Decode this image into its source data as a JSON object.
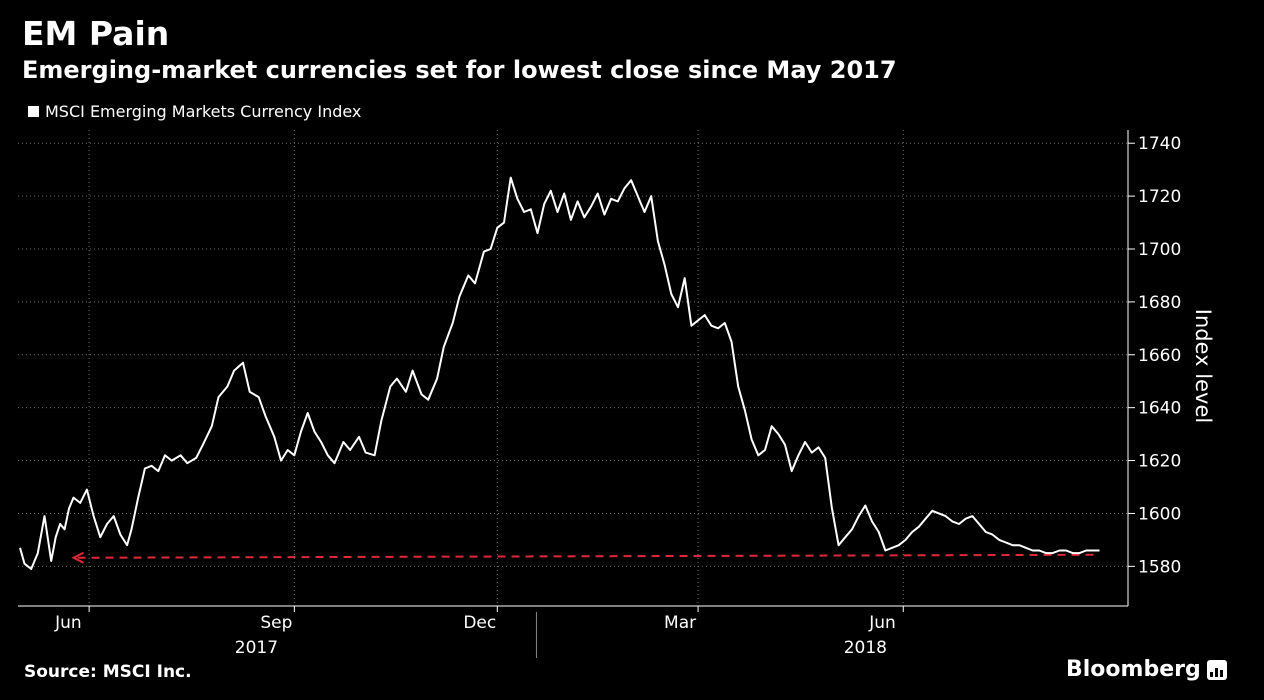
{
  "header": {
    "title": "EM Pain",
    "subtitle": "Emerging-market currencies set for lowest close since May 2017"
  },
  "footer": {
    "source": "Source: MSCI Inc.",
    "brand": "Bloomberg"
  },
  "colors": {
    "background": "#000000",
    "line": "#ffffff",
    "reference": "#e0283a",
    "grid": "#6e6e6e"
  },
  "chart_data": {
    "type": "line",
    "grid": true,
    "legend": {
      "position": "top-left",
      "entries": [
        "MSCI Emerging Markets Currency Index"
      ]
    },
    "ylabel": "Index level",
    "ylim": [
      1565,
      1745
    ],
    "yticks": [
      "1580",
      "1600",
      "1620",
      "1640",
      "1660",
      "1680",
      "1700",
      "1720",
      "1740"
    ],
    "x_domain": [
      "2017-05-01",
      "2018-08-30"
    ],
    "month_ticks": [
      {
        "date": "2017-06-01",
        "label": "Jun"
      },
      {
        "date": "2017-09-01",
        "label": "Sep"
      },
      {
        "date": "2017-12-01",
        "label": "Dec"
      },
      {
        "date": "2018-03-01",
        "label": "Mar"
      },
      {
        "date": "2018-06-01",
        "label": "Jun"
      }
    ],
    "year_labels": [
      {
        "date": "2017-08-15",
        "label": "2017"
      },
      {
        "date": "2018-05-15",
        "label": "2018"
      }
    ],
    "year_divider": "2018-01-01",
    "reference_line": {
      "value": 1584,
      "from": "2017-05-25",
      "to": "2018-08-28",
      "style": "dashed",
      "arrow": "left"
    },
    "series": [
      {
        "name": "MSCI Emerging Markets Currency Index",
        "x": [
          "2017-05-01",
          "2017-05-03",
          "2017-05-06",
          "2017-05-09",
          "2017-05-12",
          "2017-05-15",
          "2017-05-17",
          "2017-05-19",
          "2017-05-21",
          "2017-05-23",
          "2017-05-25",
          "2017-05-28",
          "2017-05-31",
          "2017-06-03",
          "2017-06-06",
          "2017-06-09",
          "2017-06-12",
          "2017-06-15",
          "2017-06-18",
          "2017-06-20",
          "2017-06-23",
          "2017-06-26",
          "2017-06-29",
          "2017-07-02",
          "2017-07-05",
          "2017-07-08",
          "2017-07-12",
          "2017-07-15",
          "2017-07-19",
          "2017-07-22",
          "2017-07-26",
          "2017-07-29",
          "2017-08-02",
          "2017-08-05",
          "2017-08-09",
          "2017-08-12",
          "2017-08-16",
          "2017-08-19",
          "2017-08-23",
          "2017-08-26",
          "2017-08-29",
          "2017-09-01",
          "2017-09-04",
          "2017-09-07",
          "2017-09-10",
          "2017-09-13",
          "2017-09-16",
          "2017-09-19",
          "2017-09-23",
          "2017-09-26",
          "2017-09-30",
          "2017-10-03",
          "2017-10-07",
          "2017-10-10",
          "2017-10-14",
          "2017-10-17",
          "2017-10-21",
          "2017-10-24",
          "2017-10-28",
          "2017-10-31",
          "2017-11-04",
          "2017-11-07",
          "2017-11-11",
          "2017-11-14",
          "2017-11-18",
          "2017-11-21",
          "2017-11-25",
          "2017-11-28",
          "2017-12-01",
          "2017-12-04",
          "2017-12-07",
          "2017-12-10",
          "2017-12-13",
          "2017-12-16",
          "2017-12-19",
          "2017-12-22",
          "2017-12-25",
          "2017-12-28",
          "2017-12-31",
          "2018-01-03",
          "2018-01-06",
          "2018-01-09",
          "2018-01-12",
          "2018-01-15",
          "2018-01-18",
          "2018-01-21",
          "2018-01-24",
          "2018-01-27",
          "2018-01-30",
          "2018-02-02",
          "2018-02-05",
          "2018-02-08",
          "2018-02-11",
          "2018-02-14",
          "2018-02-17",
          "2018-02-20",
          "2018-02-23",
          "2018-02-26",
          "2018-03-01",
          "2018-03-04",
          "2018-03-07",
          "2018-03-10",
          "2018-03-13",
          "2018-03-16",
          "2018-03-19",
          "2018-03-22",
          "2018-03-25",
          "2018-03-28",
          "2018-03-31",
          "2018-04-03",
          "2018-04-06",
          "2018-04-09",
          "2018-04-12",
          "2018-04-15",
          "2018-04-18",
          "2018-04-21",
          "2018-04-24",
          "2018-04-27",
          "2018-04-30",
          "2018-05-03",
          "2018-05-06",
          "2018-05-09",
          "2018-05-12",
          "2018-05-15",
          "2018-05-18",
          "2018-05-21",
          "2018-05-24",
          "2018-05-27",
          "2018-05-30",
          "2018-06-02",
          "2018-06-05",
          "2018-06-08",
          "2018-06-11",
          "2018-06-14",
          "2018-06-17",
          "2018-06-20",
          "2018-06-23",
          "2018-06-26",
          "2018-06-29",
          "2018-07-02",
          "2018-07-05",
          "2018-07-08",
          "2018-07-11",
          "2018-07-14",
          "2018-07-17",
          "2018-07-20",
          "2018-07-23",
          "2018-07-26",
          "2018-07-29",
          "2018-08-01",
          "2018-08-04",
          "2018-08-07",
          "2018-08-10",
          "2018-08-13",
          "2018-08-16",
          "2018-08-19",
          "2018-08-22",
          "2018-08-25",
          "2018-08-28"
        ],
        "values": [
          1587,
          1581,
          1579,
          1585,
          1599,
          1582,
          1591,
          1596,
          1594,
          1602,
          1606,
          1604,
          1609,
          1599,
          1591,
          1596,
          1599,
          1592,
          1588,
          1594,
          1606,
          1617,
          1618,
          1616,
          1622,
          1620,
          1622,
          1619,
          1621,
          1626,
          1633,
          1644,
          1648,
          1654,
          1657,
          1646,
          1644,
          1637,
          1629,
          1620,
          1624,
          1622,
          1631,
          1638,
          1631,
          1627,
          1622,
          1619,
          1627,
          1624,
          1629,
          1623,
          1622,
          1635,
          1648,
          1651,
          1646,
          1654,
          1645,
          1643,
          1651,
          1663,
          1672,
          1682,
          1690,
          1687,
          1699,
          1700,
          1708,
          1710,
          1727,
          1719,
          1714,
          1715,
          1706,
          1717,
          1722,
          1714,
          1721,
          1711,
          1718,
          1712,
          1716,
          1721,
          1713,
          1719,
          1718,
          1723,
          1726,
          1720,
          1714,
          1720,
          1703,
          1694,
          1683,
          1678,
          1689,
          1671,
          1673,
          1675,
          1671,
          1670,
          1672,
          1665,
          1648,
          1639,
          1628,
          1622,
          1624,
          1633,
          1630,
          1626,
          1616,
          1622,
          1627,
          1623,
          1625,
          1621,
          1602,
          1588,
          1591,
          1594,
          1599,
          1603,
          1597,
          1593,
          1586,
          1587,
          1588,
          1590,
          1593,
          1595,
          1598,
          1601,
          1600,
          1599,
          1597,
          1596,
          1598,
          1599,
          1596,
          1593,
          1592,
          1590,
          1589,
          1588,
          1588,
          1587,
          1586,
          1586,
          1585,
          1585,
          1586,
          1586,
          1585,
          1585,
          1586,
          1586,
          1586
        ]
      }
    ]
  }
}
